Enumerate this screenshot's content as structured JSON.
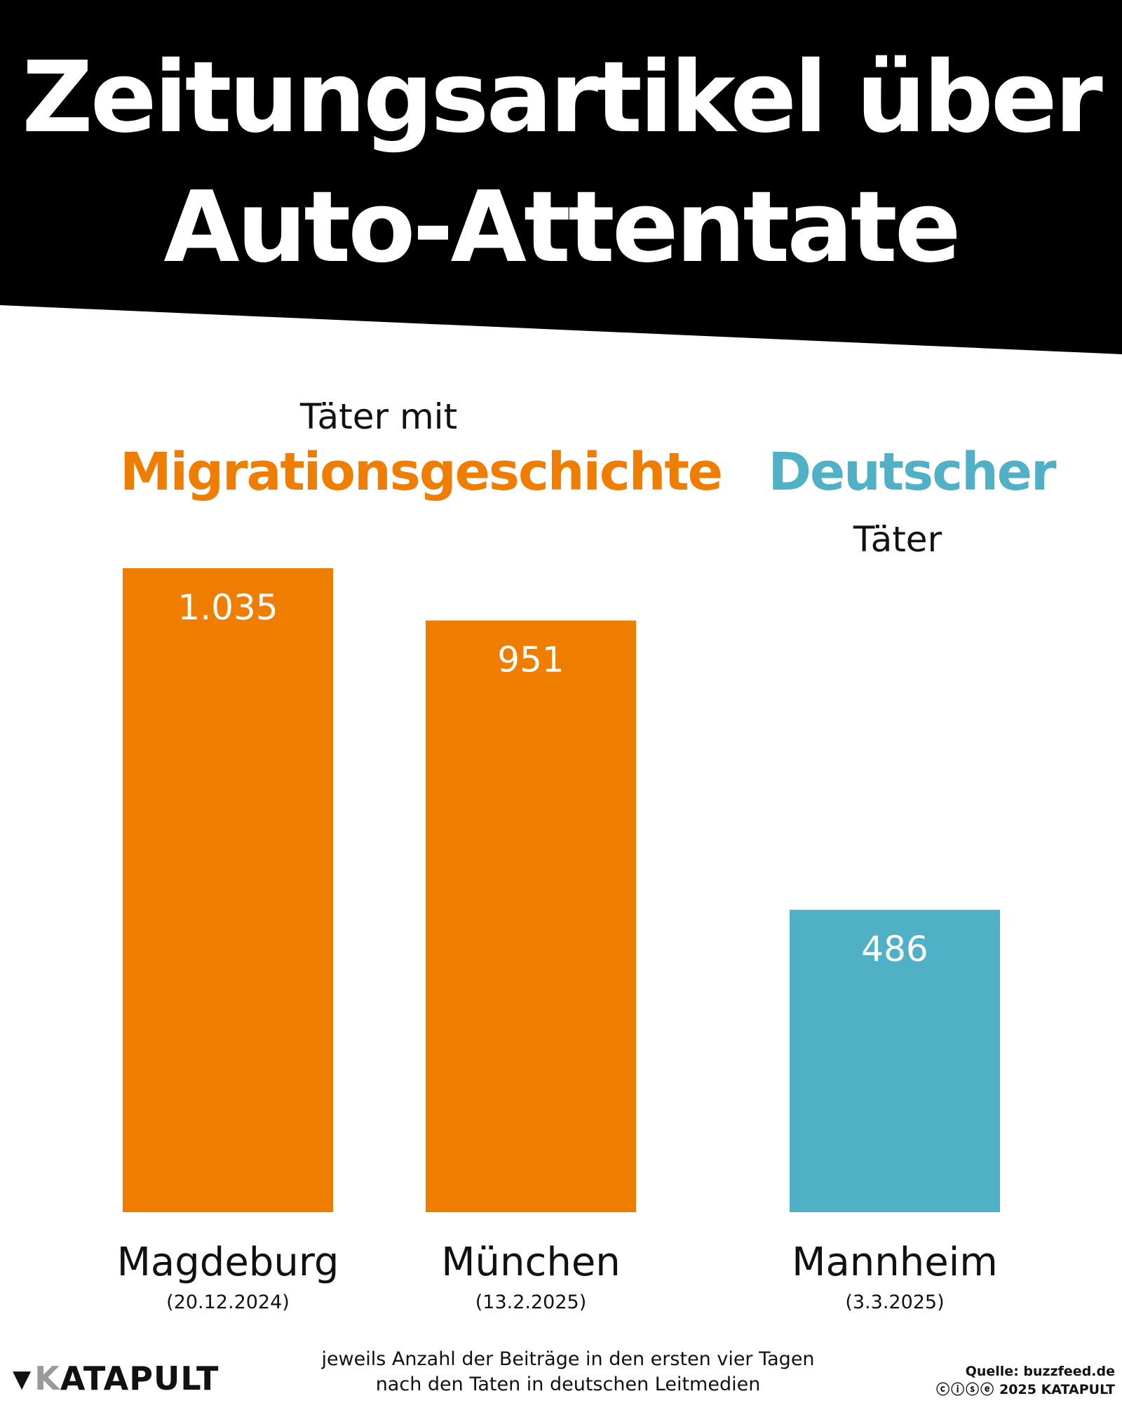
{
  "header": {
    "title_line1": "Zeitungsartikel über",
    "title_line2": "Auto-Attentate",
    "background_color": "#000000",
    "text_color": "#ffffff"
  },
  "groups": {
    "migration": {
      "prefix": "Täter mit",
      "highlight": "Migrationsgeschichte",
      "color": "#ef7d00"
    },
    "german": {
      "highlight": "Deutscher",
      "suffix": "Täter",
      "color": "#4fb0c6"
    }
  },
  "chart_data": {
    "type": "bar",
    "title": "Zeitungsartikel über Auto-Attentate",
    "xlabel": "",
    "ylabel": "",
    "ylim": [
      0,
      1035
    ],
    "categories": [
      "Magdeburg",
      "München",
      "Mannheim"
    ],
    "dates": [
      "(20.12.2024)",
      "(13.2.2025)",
      "(3.3.2025)"
    ],
    "values": [
      1035,
      951,
      486
    ],
    "value_labels": [
      "1.035",
      "951",
      "486"
    ],
    "groups": [
      "migration",
      "migration",
      "german"
    ],
    "colors": [
      "#ef7d00",
      "#ef7d00",
      "#4fb0c6"
    ],
    "grid": false,
    "legend": "none"
  },
  "footer": {
    "note_line1": "jeweils Anzahl der Beiträge in den ersten vier Tagen",
    "note_line2": "nach den Taten in deutschen Leitmedien",
    "logo_first": "K",
    "logo_rest": "ATAPULT",
    "source": "Quelle: buzzfeed.de",
    "license_icons": "ⓒⓘⓢⓔ",
    "copyright": "2025 KATAPULT"
  }
}
